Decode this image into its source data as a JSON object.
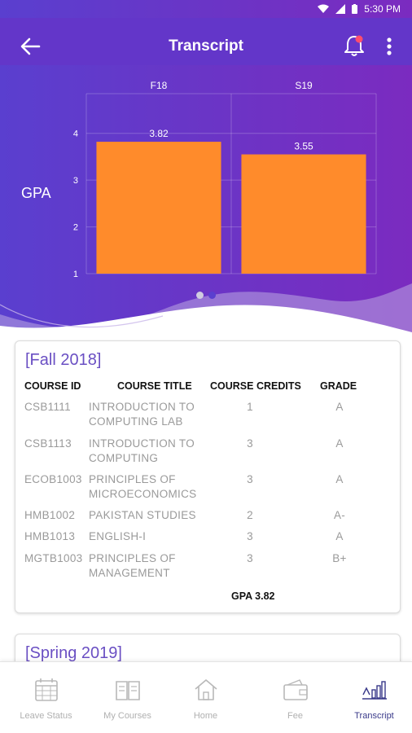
{
  "status_bar": {
    "time": "5:30 PM",
    "icons": [
      "wifi-icon",
      "signal-icon",
      "battery-icon"
    ]
  },
  "app_bar": {
    "title": "Transcript",
    "back_icon": "arrow-left-icon",
    "notification_icon": "bell-icon",
    "menu_icon": "more-vert-icon"
  },
  "chart_data": {
    "type": "bar",
    "categories": [
      "F18",
      "S19"
    ],
    "values": [
      3.82,
      3.55
    ],
    "value_labels": [
      "3.82",
      "3.55"
    ],
    "ylabel": "GPA",
    "yticks": [
      "1",
      "2",
      "3",
      "4"
    ],
    "ylim": [
      1,
      4.5
    ],
    "bar_color": "#ff8b2b",
    "grid": true
  },
  "pager": {
    "active_index": 1,
    "count": 2
  },
  "transcript": {
    "headers": {
      "id": "COURSE ID",
      "title": "COURSE TITLE",
      "credits": "COURSE CREDITS",
      "grade": "GRADE"
    },
    "terms": [
      {
        "name": "[Fall 2018]",
        "gpa_label": "GPA 3.82",
        "courses": [
          {
            "id": "CSB1111",
            "title_l1": "INTRODUCTION TO",
            "title_l2": "COMPUTING LAB",
            "credits": "1",
            "grade": "A"
          },
          {
            "id": "CSB1113",
            "title_l1": "INTRODUCTION TO",
            "title_l2": "COMPUTING",
            "credits": "3",
            "grade": "A"
          },
          {
            "id": "ECOB1003",
            "title_l1": "PRINCIPLES OF",
            "title_l2": "MICROECONOMICS",
            "credits": "3",
            "grade": "A"
          },
          {
            "id": "HMB1002",
            "title_l1": "PAKISTAN STUDIES",
            "title_l2": "",
            "credits": "2",
            "grade": "A-"
          },
          {
            "id": "HMB1013",
            "title_l1": "ENGLISH-I",
            "title_l2": "",
            "credits": "3",
            "grade": "A"
          },
          {
            "id": "MGTB1003",
            "title_l1": "PRINCIPLES OF",
            "title_l2": "MANAGEMENT",
            "credits": "3",
            "grade": "B+"
          }
        ]
      },
      {
        "name": "[Spring 2019]"
      }
    ]
  },
  "bottom_nav": {
    "items": [
      {
        "label": "Leave Status",
        "icon": "calendar-icon"
      },
      {
        "label": "My Courses",
        "icon": "book-icon"
      },
      {
        "label": "Home",
        "icon": "home-icon"
      },
      {
        "label": "Fee",
        "icon": "wallet-icon"
      },
      {
        "label": "Transcript",
        "icon": "chart-icon"
      }
    ],
    "active_index": 4
  },
  "colors": {
    "primary": "#6336c9",
    "accent_orange": "#ff8b2b",
    "term_title": "#6a4fc3",
    "nav_active": "#3a3a8a"
  }
}
